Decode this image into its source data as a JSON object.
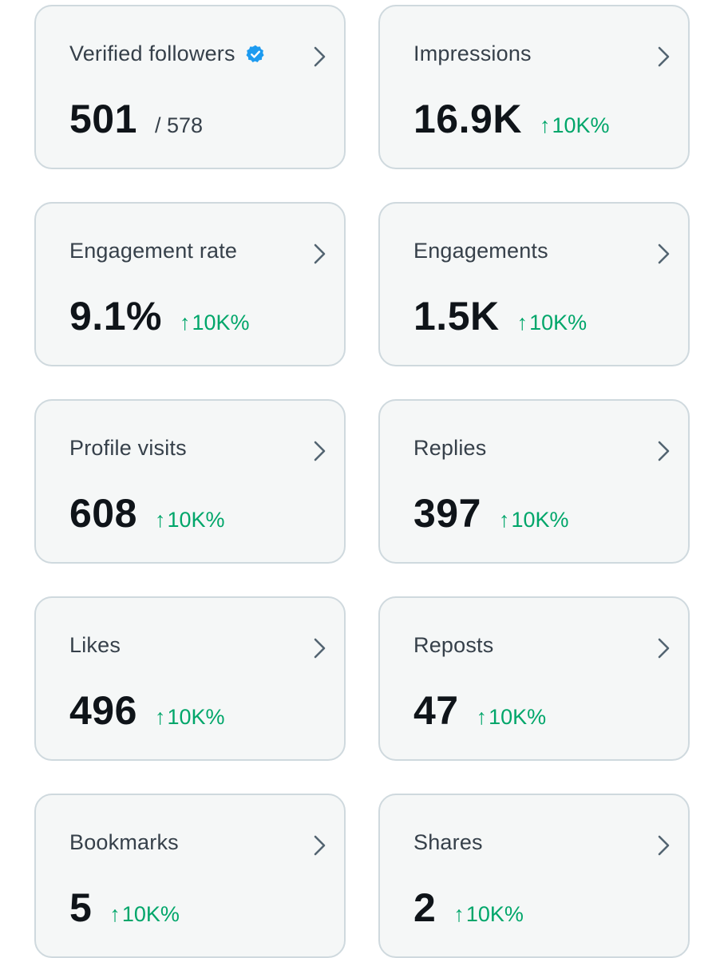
{
  "colors": {
    "card_bg": "#f5f7f7",
    "card_border": "#cfd9de",
    "label": "#36404a",
    "value": "#0f1419",
    "positive": "#00a66a",
    "verified": "#1d9bf0",
    "chevron": "#536471"
  },
  "cards": [
    {
      "label": "Verified followers",
      "value": "501",
      "denominator": "/ 578",
      "icon": "verified-badge-icon"
    },
    {
      "label": "Impressions",
      "value": "16.9K",
      "arrow": "↑",
      "change": "10K%"
    },
    {
      "label": "Engagement rate",
      "value": "9.1%",
      "arrow": "↑",
      "change": "10K%"
    },
    {
      "label": "Engagements",
      "value": "1.5K",
      "arrow": "↑",
      "change": "10K%"
    },
    {
      "label": "Profile visits",
      "value": "608",
      "arrow": "↑",
      "change": "10K%"
    },
    {
      "label": "Replies",
      "value": "397",
      "arrow": "↑",
      "change": "10K%"
    },
    {
      "label": "Likes",
      "value": "496",
      "arrow": "↑",
      "change": "10K%"
    },
    {
      "label": "Reposts",
      "value": "47",
      "arrow": "↑",
      "change": "10K%"
    },
    {
      "label": "Bookmarks",
      "value": "5",
      "arrow": "↑",
      "change": "10K%"
    },
    {
      "label": "Shares",
      "value": "2",
      "arrow": "↑",
      "change": "10K%"
    }
  ]
}
